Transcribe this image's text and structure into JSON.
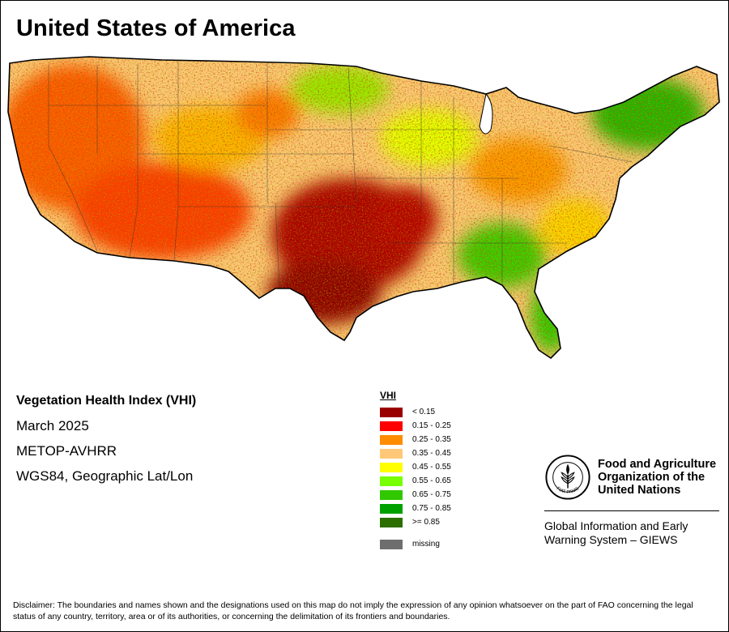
{
  "title": "United States of America",
  "map_info": {
    "index_name": "Vegetation Health Index (VHI)",
    "period": "March 2025",
    "sensor": "METOP-AVHRR",
    "projection": "WGS84, Geographic Lat/Lon"
  },
  "legend": {
    "title": "VHI",
    "classes": [
      {
        "label": "< 0.15",
        "color": "#990000"
      },
      {
        "label": "0.15 - 0.25",
        "color": "#ff0000"
      },
      {
        "label": "0.25 - 0.35",
        "color": "#ff8c00"
      },
      {
        "label": "0.35 - 0.45",
        "color": "#ffc878"
      },
      {
        "label": "0.45 - 0.55",
        "color": "#ffff00"
      },
      {
        "label": "0.55 - 0.65",
        "color": "#78ff00"
      },
      {
        "label": "0.65 - 0.75",
        "color": "#32c800"
      },
      {
        "label": "0.75 - 0.85",
        "color": "#00a000"
      },
      {
        "label": ">= 0.85",
        "color": "#2d6e00"
      }
    ],
    "missing": {
      "label": "missing",
      "color": "#6e6e6e"
    }
  },
  "organization": {
    "emblem_text": "FAO",
    "emblem_motto": "FIAT PANIS",
    "name_lines": [
      "Food and Agriculture",
      "Organization of the",
      "United Nations"
    ],
    "system_lines": [
      "Global Information and Early",
      "Warning System – GIEWS"
    ]
  },
  "disclaimer": "Disclaimer: The boundaries and names shown and the designations used on this map do not imply the expression of any opinion whatsoever on the part of FAO concerning the legal status of any country, territory, area or of its authorities, or concerning the delimitation of its frontiers and boundaries."
}
